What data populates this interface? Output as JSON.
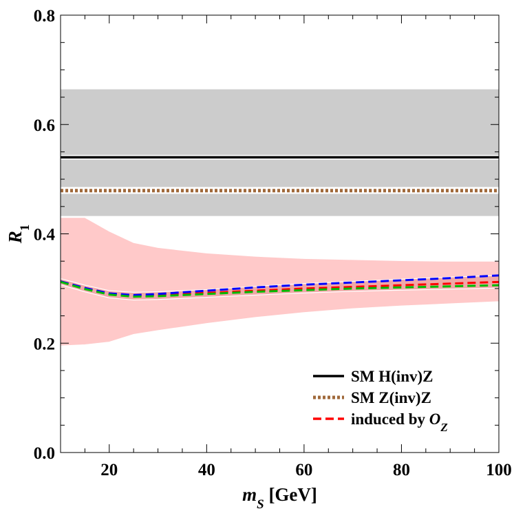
{
  "chart_data": {
    "type": "line",
    "xlabel": "m_S [GeV]",
    "ylabel": "R_1",
    "xlim": [
      10,
      100
    ],
    "ylim": [
      0,
      0.8
    ],
    "x_ticks": [
      20,
      40,
      60,
      80,
      100
    ],
    "y_ticks": [
      0.0,
      0.2,
      0.4,
      0.6,
      0.8
    ],
    "x_tick_labels": [
      "20",
      "40",
      "60",
      "80",
      "100"
    ],
    "y_tick_labels": [
      "0.0",
      "0.2",
      "0.4",
      "0.6",
      "0.8"
    ],
    "grid": false,
    "legend_position": "bottom-right",
    "legend": [
      {
        "label": "SM H(inv)Z",
        "color": "#000000",
        "style": "solid"
      },
      {
        "label": "SM Z(inv)Z",
        "color": "#a0693a",
        "style": "dotted"
      },
      {
        "label": "induced by O_Z",
        "color": "#ff0000",
        "style": "dashed"
      }
    ],
    "bands": [
      {
        "name": "SM H(inv)Z band",
        "color": "#cccccc",
        "y_low": 0.432,
        "y_high": 0.665
      },
      {
        "name": "SM Z(inv)Z band",
        "color": "#cccccc",
        "y_low": 0.474,
        "y_high": 0.485
      },
      {
        "name": "induced band",
        "color": "#ffc9c9",
        "x": [
          10,
          15,
          20,
          25,
          30,
          40,
          50,
          60,
          70,
          80,
          90,
          100
        ],
        "y_low": [
          0.195,
          0.197,
          0.202,
          0.216,
          0.223,
          0.236,
          0.247,
          0.256,
          0.263,
          0.268,
          0.272,
          0.276
        ],
        "y_high": [
          0.43,
          0.43,
          0.405,
          0.384,
          0.375,
          0.365,
          0.359,
          0.355,
          0.353,
          0.351,
          0.35,
          0.35
        ]
      },
      {
        "name": "induced inner band",
        "color": "#f0a8a8",
        "x": [
          10,
          15,
          20,
          25,
          30,
          40,
          50,
          60,
          70,
          80,
          90,
          100
        ],
        "y_low": [
          0.307,
          0.294,
          0.283,
          0.279,
          0.28,
          0.284,
          0.288,
          0.292,
          0.295,
          0.297,
          0.299,
          0.301
        ],
        "y_high": [
          0.318,
          0.306,
          0.296,
          0.293,
          0.294,
          0.298,
          0.304,
          0.309,
          0.313,
          0.317,
          0.321,
          0.324
        ]
      }
    ],
    "series": [
      {
        "name": "SM H(inv)Z",
        "color": "#000000",
        "style": "solid",
        "x": [
          10,
          100
        ],
        "y": [
          0.54,
          0.54
        ]
      },
      {
        "name": "SM Z(inv)Z",
        "color": "#a0693a",
        "style": "dotted",
        "x": [
          10,
          100
        ],
        "y": [
          0.479,
          0.479
        ]
      },
      {
        "name": "induced by O_Z",
        "color": "#ff0000",
        "style": "dashed",
        "x": [
          10,
          15,
          20,
          25,
          30,
          40,
          50,
          60,
          70,
          80,
          90,
          100
        ],
        "y": [
          0.313,
          0.301,
          0.291,
          0.287,
          0.288,
          0.292,
          0.296,
          0.3,
          0.303,
          0.306,
          0.309,
          0.312
        ]
      },
      {
        "color": "#0000ff",
        "style": "dashed",
        "x": [
          10,
          15,
          20,
          25,
          30,
          40,
          50,
          60,
          70,
          80,
          90,
          100
        ],
        "y": [
          0.313,
          0.301,
          0.291,
          0.288,
          0.29,
          0.296,
          0.302,
          0.307,
          0.311,
          0.315,
          0.319,
          0.324
        ]
      },
      {
        "color": "#00bb00",
        "style": "dashed",
        "x": [
          10,
          15,
          20,
          25,
          30,
          40,
          50,
          60,
          70,
          80,
          90,
          100
        ],
        "y": [
          0.312,
          0.299,
          0.289,
          0.285,
          0.286,
          0.29,
          0.294,
          0.297,
          0.3,
          0.302,
          0.304,
          0.306
        ]
      }
    ]
  }
}
